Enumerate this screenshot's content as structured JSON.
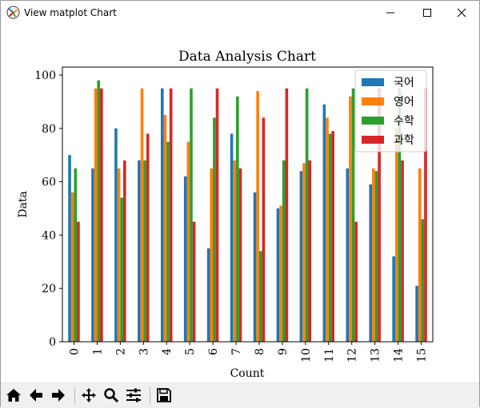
{
  "window": {
    "title": "View matplot Chart",
    "icons": [
      "matplotlib-logo-icon",
      "minimize-icon",
      "maximize-icon",
      "close-icon"
    ]
  },
  "toolbar": {
    "buttons": [
      {
        "name": "home-button",
        "icon": "home-icon"
      },
      {
        "name": "back-button",
        "icon": "arrow-left-icon"
      },
      {
        "name": "forward-button",
        "icon": "arrow-right-icon"
      },
      {
        "name": "pan-button",
        "icon": "move-icon"
      },
      {
        "name": "zoom-button",
        "icon": "magnifier-icon"
      },
      {
        "name": "configure-subplots-button",
        "icon": "sliders-icon"
      },
      {
        "name": "save-button",
        "icon": "floppy-disk-icon"
      }
    ]
  },
  "chart_data": {
    "type": "bar",
    "title": "Data Analysis Chart",
    "xlabel": "Count",
    "ylabel": "Data",
    "ylim": [
      0,
      100
    ],
    "yticks": [
      0,
      20,
      40,
      60,
      80,
      100
    ],
    "categories": [
      "0",
      "1",
      "2",
      "3",
      "4",
      "5",
      "6",
      "7",
      "8",
      "9",
      "10",
      "11",
      "12",
      "13",
      "14",
      "15"
    ],
    "legend_position": "top-right",
    "grid": false,
    "series": [
      {
        "name": "국어",
        "color": "#1f77b4",
        "values": [
          70,
          65,
          80,
          68,
          95,
          62,
          35,
          78,
          56,
          50,
          64,
          89,
          65,
          59,
          32,
          21
        ]
      },
      {
        "name": "영어",
        "color": "#ff7f0e",
        "values": [
          56,
          95,
          65,
          95,
          85,
          75,
          65,
          68,
          94,
          51,
          67,
          84,
          92,
          65,
          80,
          65
        ]
      },
      {
        "name": "수학",
        "color": "#2ca02c",
        "values": [
          65,
          98,
          54,
          68,
          75,
          95,
          84,
          92,
          34,
          68,
          95,
          78,
          95,
          64,
          95,
          46
        ]
      },
      {
        "name": "과학",
        "color": "#d62728",
        "values": [
          45,
          95,
          68,
          78,
          95,
          45,
          95,
          65,
          84,
          95,
          68,
          79,
          45,
          95,
          68,
          95
        ]
      }
    ]
  }
}
